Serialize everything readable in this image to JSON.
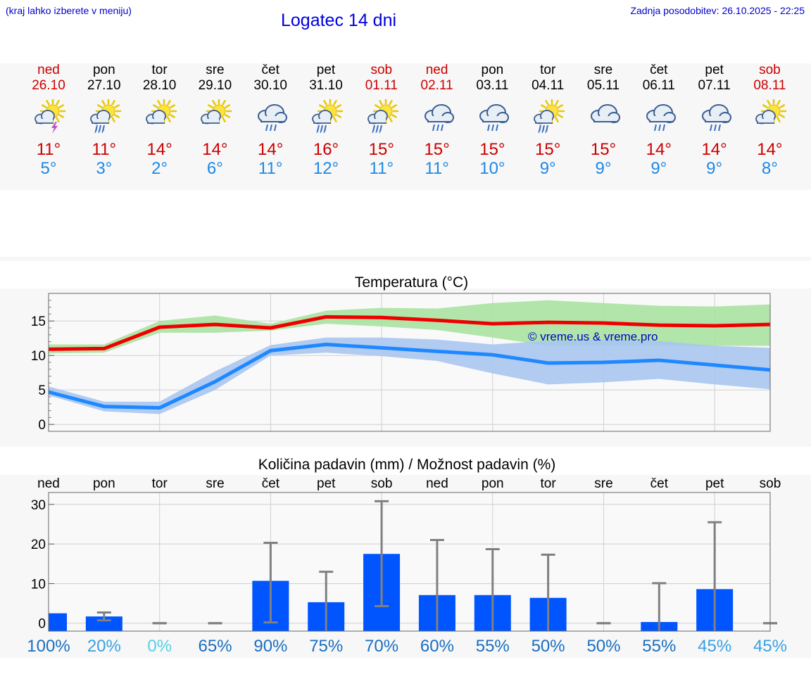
{
  "header": {
    "left_note": "(kraj lahko izberete v meniju)",
    "title": "Logatec 14 dni",
    "updated": "Zadnja posodobitev: 26.10.2025 - 22:25"
  },
  "days": [
    {
      "name": "ned",
      "date": "26.10",
      "icon": "sun-cloud-thunder-icon",
      "tmax": "11°",
      "tmin": "5°",
      "weekend": true
    },
    {
      "name": "pon",
      "date": "27.10",
      "icon": "sun-cloud-rain-icon",
      "tmax": "11°",
      "tmin": "3°",
      "weekend": false
    },
    {
      "name": "tor",
      "date": "28.10",
      "icon": "sun-cloud-icon",
      "tmax": "14°",
      "tmin": "2°",
      "weekend": false
    },
    {
      "name": "sre",
      "date": "29.10",
      "icon": "sun-cloud-icon",
      "tmax": "14°",
      "tmin": "6°",
      "weekend": false
    },
    {
      "name": "čet",
      "date": "30.10",
      "icon": "cloud-rain-icon",
      "tmax": "14°",
      "tmin": "11°",
      "weekend": false
    },
    {
      "name": "pet",
      "date": "31.10",
      "icon": "sun-cloud-rain-icon",
      "tmax": "16°",
      "tmin": "12°",
      "weekend": false
    },
    {
      "name": "sob",
      "date": "01.11",
      "icon": "sun-cloud-rain-icon",
      "tmax": "15°",
      "tmin": "11°",
      "weekend": true
    },
    {
      "name": "ned",
      "date": "02.11",
      "icon": "cloud-rain-icon",
      "tmax": "15°",
      "tmin": "11°",
      "weekend": true
    },
    {
      "name": "pon",
      "date": "03.11",
      "icon": "cloud-rain-icon",
      "tmax": "15°",
      "tmin": "10°",
      "weekend": false
    },
    {
      "name": "tor",
      "date": "04.11",
      "icon": "sun-cloud-rain-icon",
      "tmax": "15°",
      "tmin": "9°",
      "weekend": false
    },
    {
      "name": "sre",
      "date": "05.11",
      "icon": "cloud-icon",
      "tmax": "15°",
      "tmin": "9°",
      "weekend": false
    },
    {
      "name": "čet",
      "date": "06.11",
      "icon": "cloud-rain-icon",
      "tmax": "14°",
      "tmin": "9°",
      "weekend": false
    },
    {
      "name": "pet",
      "date": "07.11",
      "icon": "cloud-rain-icon",
      "tmax": "14°",
      "tmin": "9°",
      "weekend": false
    },
    {
      "name": "sob",
      "date": "08.11",
      "icon": "sun-cloud-icon",
      "tmax": "14°",
      "tmin": "8°",
      "weekend": true
    }
  ],
  "chart_data": [
    {
      "type": "line",
      "title": "Temperatura (°C)",
      "watermark": "© vreme.us & vreme.pro",
      "ylim": [
        -1,
        19
      ],
      "yticks": [
        0,
        5,
        10,
        15
      ],
      "grid": true,
      "x": [
        0,
        1,
        2,
        3,
        4,
        5,
        6,
        7,
        8,
        9,
        10,
        11,
        12,
        13
      ],
      "series": [
        {
          "color": "#ee0000",
          "band_color": "#a8e2a0",
          "values": [
            10.9,
            11.0,
            14.1,
            14.5,
            14.0,
            15.6,
            15.5,
            15.1,
            14.6,
            14.8,
            14.7,
            14.4,
            14.3,
            14.5
          ],
          "band_low": [
            10.3,
            10.4,
            13.3,
            13.3,
            13.6,
            14.6,
            14.2,
            13.7,
            12.6,
            11.4,
            11.4,
            11.4,
            11.4,
            11.4
          ],
          "band_high": [
            11.6,
            11.6,
            15.0,
            15.8,
            14.6,
            16.5,
            16.9,
            16.8,
            17.6,
            18.0,
            17.6,
            17.2,
            17.1,
            17.4
          ]
        },
        {
          "color": "#1e88ff",
          "band_color": "#a9c5ef",
          "values": [
            4.7,
            2.6,
            2.4,
            6.2,
            10.7,
            11.6,
            11.1,
            10.6,
            10.1,
            8.9,
            9.0,
            9.3,
            8.6,
            7.9
          ],
          "band_low": [
            4.2,
            1.9,
            1.5,
            5.0,
            10.0,
            10.4,
            9.9,
            9.2,
            7.4,
            5.8,
            6.1,
            6.6,
            5.8,
            5.1
          ],
          "band_high": [
            5.5,
            3.3,
            3.3,
            7.7,
            11.5,
            12.6,
            12.6,
            12.3,
            11.6,
            12.1,
            12.3,
            12.1,
            11.4,
            11.1
          ]
        }
      ]
    },
    {
      "type": "bar",
      "title": "Količina padavin (mm) / Možnost padavin (%)",
      "categories": [
        "ned",
        "pon",
        "tor",
        "sre",
        "čet",
        "pet",
        "sob",
        "ned",
        "pon",
        "tor",
        "sre",
        "čet",
        "pet",
        "sob"
      ],
      "ylim": [
        -2,
        33
      ],
      "yticks": [
        0,
        10,
        20,
        30
      ],
      "grid": true,
      "values": [
        2.5,
        1.7,
        0,
        0,
        10.7,
        5.3,
        17.5,
        7.1,
        7.1,
        6.4,
        0,
        0.3,
        8.6,
        0
      ],
      "error_high": [
        null,
        2.7,
        0,
        0,
        20.3,
        13.0,
        30.8,
        21.0,
        18.7,
        17.3,
        0,
        10.1,
        25.5,
        0
      ],
      "error_low": [
        null,
        0.7,
        0,
        0,
        0.2,
        null,
        4.3,
        null,
        null,
        null,
        0,
        null,
        null,
        0
      ],
      "probabilities": [
        "100%",
        "20%",
        "0%",
        "65%",
        "90%",
        "75%",
        "70%",
        "60%",
        "55%",
        "50%",
        "50%",
        "55%",
        "45%",
        "45%"
      ],
      "probability_colors": [
        "#1a6ec0",
        "#3aa0e0",
        "#55d0e6",
        "#1a6ec0",
        "#1a6ec0",
        "#1a6ec0",
        "#1a6ec0",
        "#1a6ec0",
        "#1a6ec0",
        "#1a6ec0",
        "#1a6ec0",
        "#1a6ec0",
        "#3aa0e0",
        "#3aa0e0"
      ],
      "bar_color": "#0055ff",
      "error_color": "#808080"
    }
  ]
}
